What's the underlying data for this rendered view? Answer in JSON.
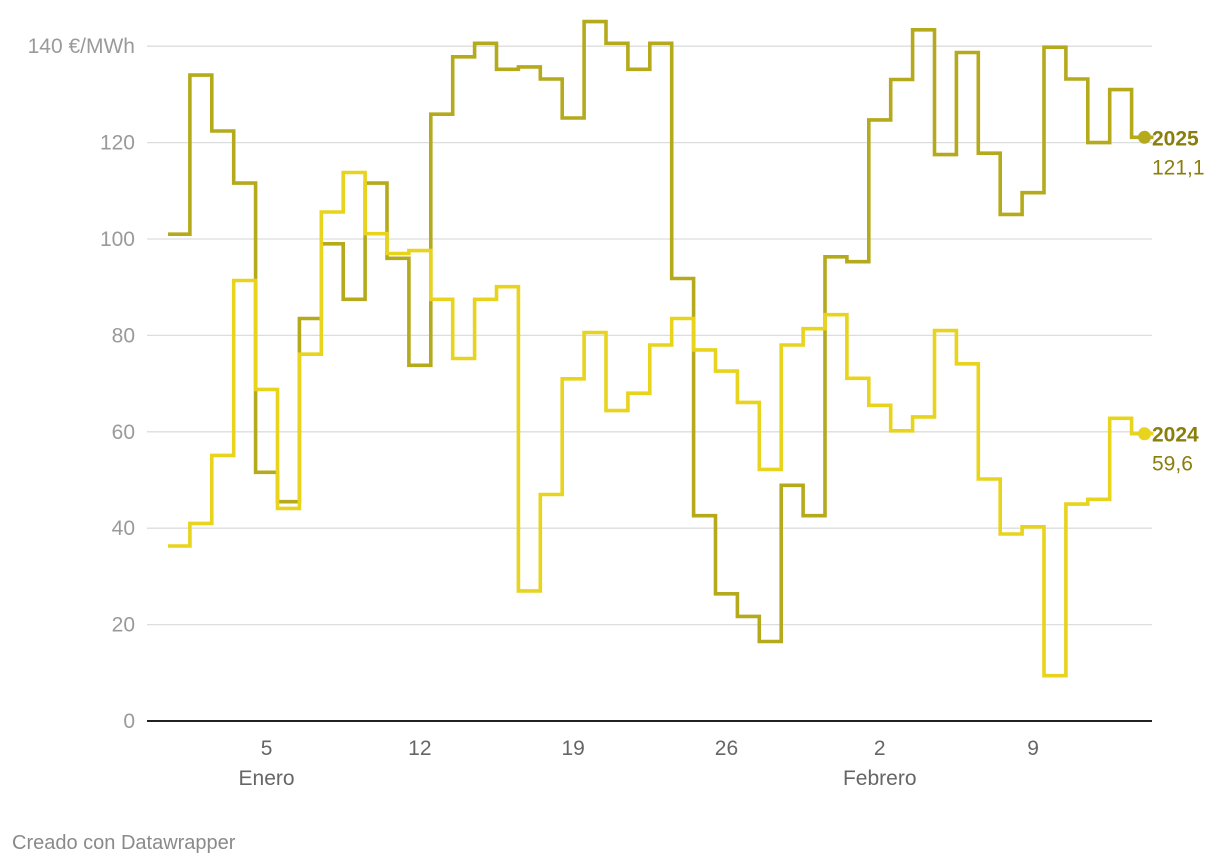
{
  "chart_data": {
    "type": "line",
    "step": true,
    "y_unit": "€/MWh",
    "ylim": [
      0,
      145
    ],
    "y_ticks": [
      0,
      20,
      40,
      60,
      80,
      100,
      120,
      140
    ],
    "y_tick_labels": [
      "0",
      "20",
      "40",
      "60",
      "80",
      "100",
      "120",
      "140 €/MWh"
    ],
    "x_ticks": [
      {
        "day": 5,
        "label": "5",
        "month_label": "Enero"
      },
      {
        "day": 12,
        "label": "12",
        "month_label": ""
      },
      {
        "day": 19,
        "label": "19",
        "month_label": ""
      },
      {
        "day": 26,
        "label": "26",
        "month_label": ""
      },
      {
        "day": 33,
        "label": "2",
        "month_label": "Febrero"
      },
      {
        "day": 40,
        "label": "9",
        "month_label": ""
      }
    ],
    "x_start_day": 1,
    "grid": true,
    "series": [
      {
        "name": "2025",
        "color": "#b5aa1c",
        "label_color": "#8a7f0c",
        "last_value_label": "121,1",
        "values": [
          101.0,
          134.0,
          122.4,
          111.6,
          51.6,
          45.5,
          83.5,
          99.0,
          87.5,
          111.6,
          96.0,
          73.8,
          125.9,
          137.8,
          140.6,
          135.2,
          135.7,
          133.2,
          125.1,
          145.1,
          140.6,
          135.2,
          140.6,
          91.8,
          42.6,
          26.4,
          21.7,
          16.5,
          48.9,
          42.6,
          96.3,
          95.3,
          124.7,
          133.1,
          143.4,
          117.5,
          138.7,
          117.8,
          105.1,
          109.6,
          139.8,
          133.2,
          120.0,
          131.0,
          121.1
        ]
      },
      {
        "name": "2024",
        "color": "#e8d41c",
        "label_color": "#8a7f0c",
        "last_value_label": "59,6",
        "values": [
          36.3,
          41.0,
          55.1,
          91.4,
          68.8,
          44.1,
          76.1,
          105.6,
          113.8,
          101.1,
          97.0,
          97.6,
          87.5,
          75.2,
          87.5,
          90.1,
          27.0,
          47.0,
          71.0,
          80.6,
          64.4,
          68.0,
          78.0,
          83.5,
          77.0,
          72.6,
          66.1,
          52.2,
          78.0,
          81.4,
          84.3,
          71.1,
          65.5,
          60.2,
          63.1,
          81.0,
          74.1,
          50.2,
          38.8,
          40.3,
          9.4,
          45.0,
          46.0,
          62.8,
          59.6
        ]
      }
    ]
  },
  "footer": {
    "credit": "Creado con Datawrapper"
  }
}
